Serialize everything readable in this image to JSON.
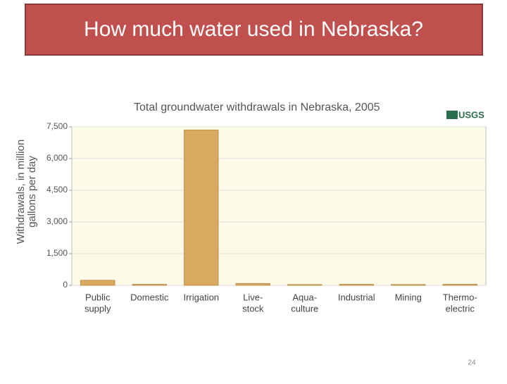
{
  "slide": {
    "title": "How much water used in Nebraska?",
    "page_number": "24"
  },
  "chart_data": {
    "type": "bar",
    "title": "Total groundwater withdrawals in Nebraska, 2005",
    "logo": "USGS",
    "ylabel": [
      "Withdrawals, in million",
      "gallons per day"
    ],
    "categories": [
      [
        "Public",
        "supply"
      ],
      [
        "Domestic"
      ],
      [
        "Irrigation"
      ],
      [
        "Live-",
        "stock"
      ],
      [
        "Aqua-",
        "culture"
      ],
      [
        "Industrial"
      ],
      [
        "Mining"
      ],
      [
        "Thermo-",
        "electric"
      ]
    ],
    "values": [
      240,
      50,
      7350,
      90,
      40,
      50,
      40,
      50
    ],
    "color": "#d9a95f",
    "ylim": [
      0,
      7500
    ],
    "yticks": [
      0,
      {
        "value": 1500,
        "label": "1,500"
      },
      {
        "value": 3000,
        "label": "3,000"
      },
      {
        "value": 4500,
        "label": "4,500"
      },
      {
        "value": 6000,
        "label": "6,000"
      },
      {
        "value": 7500,
        "label": "7,500"
      }
    ],
    "grid": true
  }
}
